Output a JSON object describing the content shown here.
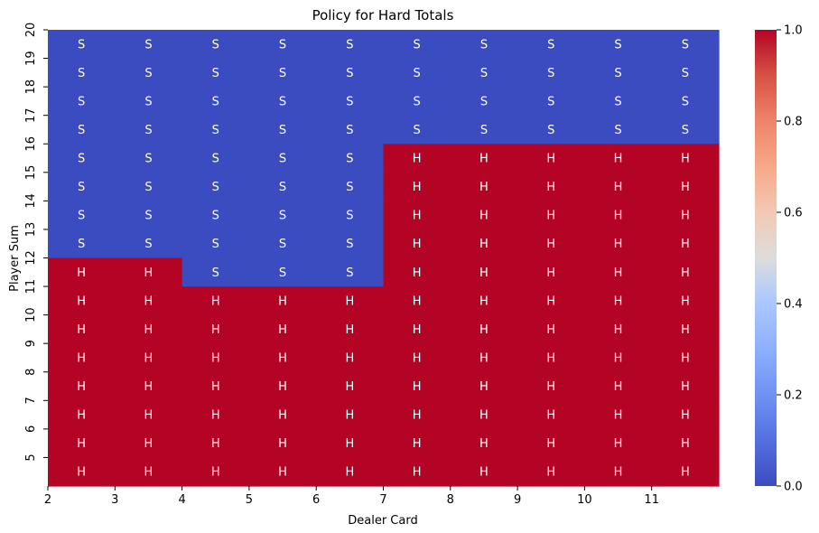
{
  "chart_data": {
    "type": "heatmap",
    "title": "Policy for Hard Totals",
    "xlabel": "Dealer Card",
    "ylabel": "Player Sum",
    "x_tick_labels": [
      "2",
      "3",
      "4",
      "5",
      "6",
      "7",
      "8",
      "9",
      "10",
      "11"
    ],
    "y_tick_labels": [
      "20",
      "19",
      "18",
      "17",
      "16",
      "15",
      "14",
      "13",
      "12",
      "11",
      "10",
      "9",
      "8",
      "7",
      "6",
      "5"
    ],
    "colormap": "coolwarm",
    "colorbar": {
      "min": 0.0,
      "max": 1.0,
      "ticks": [
        "0.0",
        "0.2",
        "0.4",
        "0.6",
        "0.8",
        "1.0"
      ]
    },
    "colors": {
      "low": "#3b4cc0",
      "high": "#b40426",
      "annotation": "#ffffff"
    },
    "annotation_map": {
      "0": "S",
      "1": "H"
    },
    "rows": [
      [
        0,
        0,
        0,
        0,
        0,
        0,
        0,
        0,
        0,
        0
      ],
      [
        0,
        0,
        0,
        0,
        0,
        0,
        0,
        0,
        0,
        0
      ],
      [
        0,
        0,
        0,
        0,
        0,
        0,
        0,
        0,
        0,
        0
      ],
      [
        0,
        0,
        0,
        0,
        0,
        0,
        0,
        0,
        0,
        0
      ],
      [
        0,
        0,
        0,
        0,
        0,
        1,
        1,
        1,
        1,
        1
      ],
      [
        0,
        0,
        0,
        0,
        0,
        1,
        1,
        1,
        1,
        1
      ],
      [
        0,
        0,
        0,
        0,
        0,
        1,
        1,
        1,
        1,
        1
      ],
      [
        0,
        0,
        0,
        0,
        0,
        1,
        1,
        1,
        1,
        1
      ],
      [
        1,
        1,
        0,
        0,
        0,
        1,
        1,
        1,
        1,
        1
      ],
      [
        1,
        1,
        1,
        1,
        1,
        1,
        1,
        1,
        1,
        1
      ],
      [
        1,
        1,
        1,
        1,
        1,
        1,
        1,
        1,
        1,
        1
      ],
      [
        1,
        1,
        1,
        1,
        1,
        1,
        1,
        1,
        1,
        1
      ],
      [
        1,
        1,
        1,
        1,
        1,
        1,
        1,
        1,
        1,
        1
      ],
      [
        1,
        1,
        1,
        1,
        1,
        1,
        1,
        1,
        1,
        1
      ],
      [
        1,
        1,
        1,
        1,
        1,
        1,
        1,
        1,
        1,
        1
      ],
      [
        1,
        1,
        1,
        1,
        1,
        1,
        1,
        1,
        1,
        1
      ]
    ]
  }
}
